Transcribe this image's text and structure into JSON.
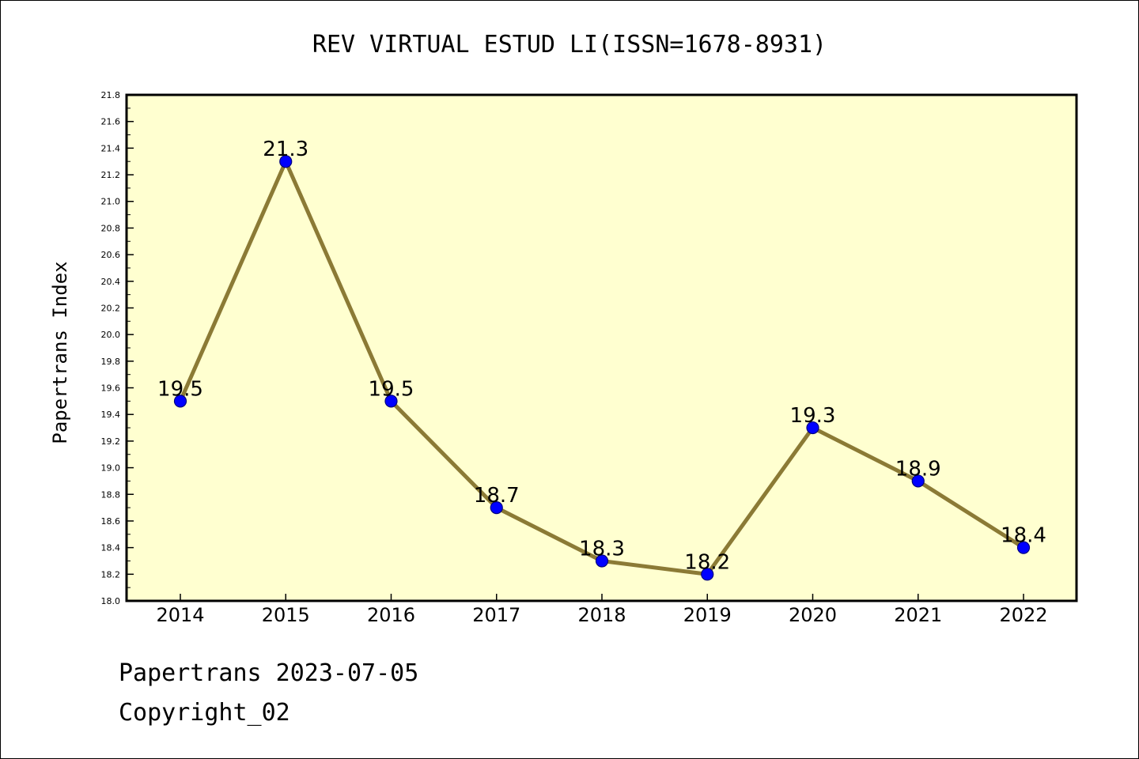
{
  "footer": {
    "line1": "Papertrans 2023-07-05",
    "line2": "Copyright_02"
  },
  "colors": {
    "plot_background": "#ffffd0",
    "line": "#8b7a35",
    "marker": "#0000ff",
    "marker_edge": "#000080"
  },
  "chart_data": {
    "type": "line",
    "title": "REV VIRTUAL ESTUD LI(ISSN=1678-8931)",
    "xlabel": "",
    "ylabel": "Papertrans Index",
    "categories": [
      "2014",
      "2015",
      "2016",
      "2017",
      "2018",
      "2019",
      "2020",
      "2021",
      "2022"
    ],
    "series": [
      {
        "values": [
          19.5,
          21.3,
          19.5,
          18.7,
          18.3,
          18.2,
          19.3,
          18.9,
          18.4
        ],
        "data_labels": [
          "19.5",
          "21.3",
          "19.5",
          "18.7",
          "18.3",
          "18.2",
          "19.3",
          "18.9",
          "18.4"
        ]
      }
    ],
    "ylim": [
      18.0,
      21.8
    ],
    "yticks": [
      "18.0",
      "18.2",
      "18.4",
      "18.6",
      "18.8",
      "19.0",
      "19.2",
      "19.4",
      "19.6",
      "19.8",
      "20.0",
      "20.2",
      "20.4",
      "20.6",
      "20.8",
      "21.0",
      "21.2",
      "21.4",
      "21.6",
      "21.8"
    ],
    "grid": false,
    "legend": "none"
  }
}
